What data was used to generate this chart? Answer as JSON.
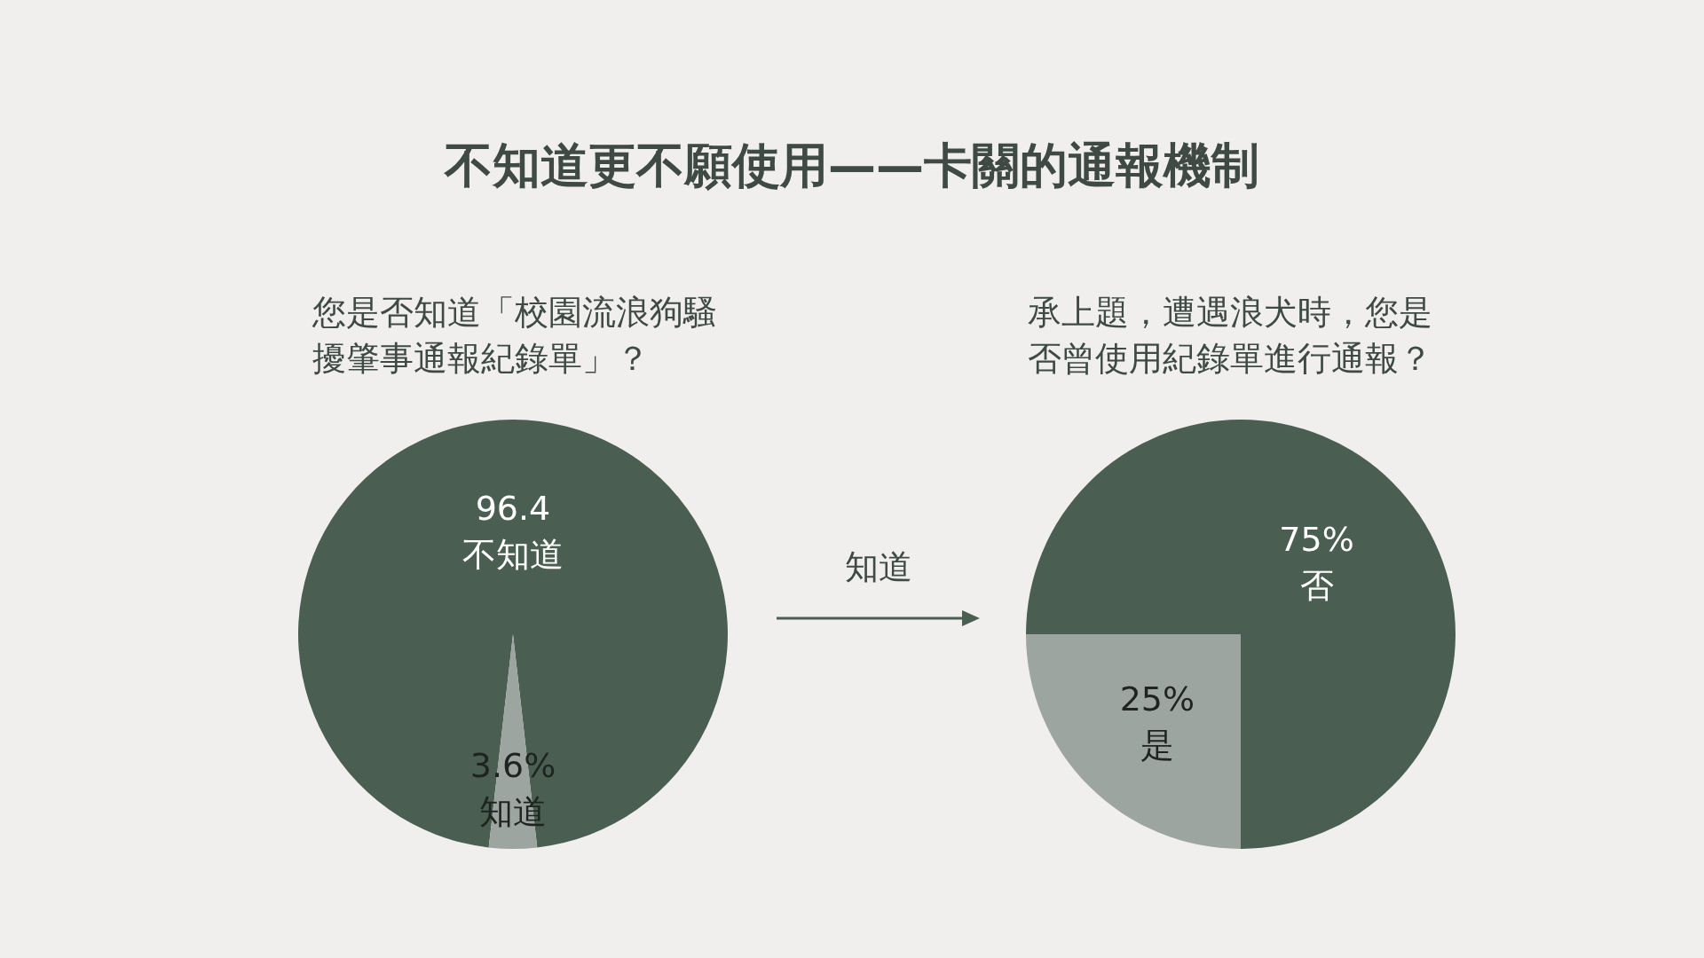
{
  "chart_data": [
    {
      "type": "pie",
      "title": "不知道更不願使用——卡關的通報機制",
      "subtitle": "您是否知道「校園流浪狗騷擾肇事通報紀錄單」？",
      "categories": [
        "不知道",
        "知道"
      ],
      "values": [
        96.4,
        3.6
      ],
      "colors": [
        "#4a5e52",
        "#9ca59f"
      ],
      "value_labels": [
        "96.4",
        "3.6%"
      ]
    },
    {
      "type": "pie",
      "subtitle": "承上題，遭遇浪犬時，您是否曾使用紀錄單進行通報？",
      "annotations": [
        "知道"
      ],
      "categories": [
        "否",
        "是"
      ],
      "values": [
        75,
        25
      ],
      "colors": [
        "#4a5e52",
        "#9ca59f"
      ],
      "value_labels": [
        "75%",
        "25%"
      ]
    }
  ]
}
